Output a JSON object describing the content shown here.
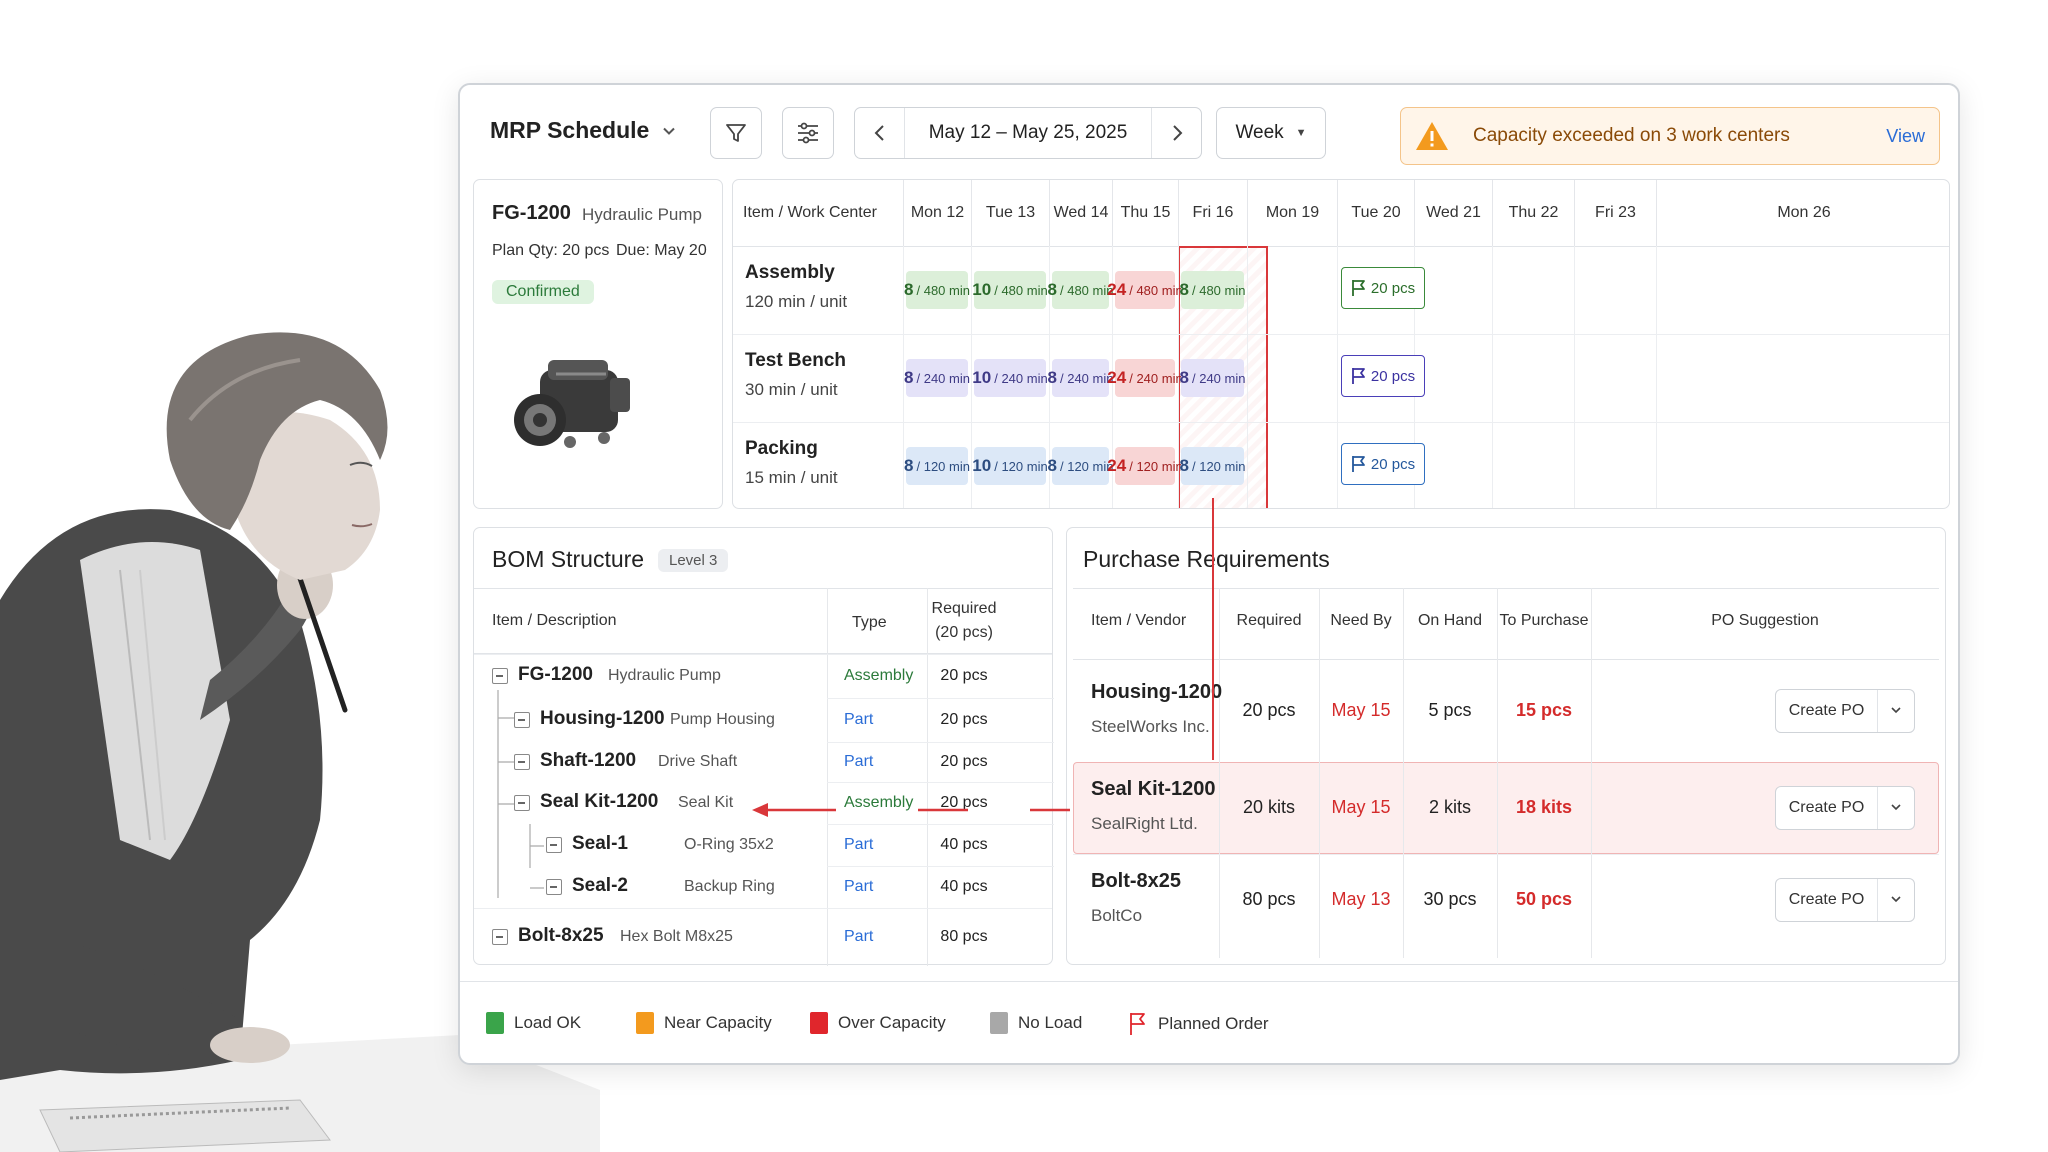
{
  "toolbar": {
    "title": "MRP Schedule",
    "date_range": "May 12 – May 25, 2025",
    "view": "Week",
    "alert_text": "Capacity exceeded on 3 work centers",
    "alert_link": "View"
  },
  "product": {
    "code": "FG-1200",
    "name": "Hydraulic Pump",
    "plan_qty": "Plan Qty: 20 pcs",
    "due": "Due: May 20",
    "status": "Confirmed"
  },
  "schedule": {
    "header_first": "Item / Work Center",
    "days": [
      "Mon 12",
      "Tue 13",
      "Wed 14",
      "Thu 15",
      "Fri 16",
      "Mon 19",
      "Tue 20",
      "Wed 21",
      "Thu 22",
      "Fri 23",
      "Mon 26"
    ],
    "rows": [
      {
        "name": "Assembly",
        "rate": "120 min / unit",
        "loads": [
          {
            "q": "8",
            "cap": "/ 480 min"
          },
          {
            "q": "10",
            "cap": "/ 480 min"
          },
          {
            "q": "8",
            "cap": "/ 480 min"
          },
          {
            "q": "24",
            "cap": "/ 480 min"
          },
          {
            "q": "8",
            "cap": "/ 480 min"
          }
        ],
        "planned": "20 pcs"
      },
      {
        "name": "Test Bench",
        "rate": "30 min / unit",
        "loads": [
          {
            "q": "8",
            "cap": "/ 240 min"
          },
          {
            "q": "10",
            "cap": "/ 240 min"
          },
          {
            "q": "8",
            "cap": "/ 240 min"
          },
          {
            "q": "24",
            "cap": "/ 240 min"
          },
          {
            "q": "8",
            "cap": "/ 240 min"
          }
        ],
        "planned": "20 pcs"
      },
      {
        "name": "Packing",
        "rate": "15 min / unit",
        "loads": [
          {
            "q": "8",
            "cap": "/ 120 min"
          },
          {
            "q": "10",
            "cap": "/ 120 min"
          },
          {
            "q": "8",
            "cap": "/ 120 min"
          },
          {
            "q": "24",
            "cap": "/ 120 min"
          },
          {
            "q": "8",
            "cap": "/ 120 min"
          }
        ],
        "planned": "20 pcs"
      }
    ]
  },
  "bom": {
    "title": "BOM Structure",
    "level": "Level 3",
    "headers": {
      "item": "Item / Description",
      "type": "Type",
      "required": "Required",
      "required_sub": "(20 pcs)"
    },
    "rows": [
      {
        "code": "FG-1200",
        "desc": "Hydraulic Pump",
        "type": "Assembly",
        "req": "20 pcs"
      },
      {
        "code": "Housing-1200",
        "desc": "Pump Housing",
        "type": "Part",
        "req": "20 pcs"
      },
      {
        "code": "Shaft-1200",
        "desc": "Drive Shaft",
        "type": "Part",
        "req": "20 pcs"
      },
      {
        "code": "Seal Kit-1200",
        "desc": "Seal Kit",
        "type": "Assembly",
        "req": "20 pcs"
      },
      {
        "code": "Seal-1",
        "desc": "O-Ring 35x2",
        "type": "Part",
        "req": "40 pcs"
      },
      {
        "code": "Seal-2",
        "desc": "Backup Ring",
        "type": "Part",
        "req": "40 pcs"
      },
      {
        "code": "Bolt-8x25",
        "desc": "Hex Bolt M8x25",
        "type": "Part",
        "req": "80 pcs"
      }
    ]
  },
  "purchase": {
    "title": "Purchase Requirements",
    "headers": [
      "Item / Vendor",
      "Required",
      "Need By",
      "On Hand",
      "To Purchase",
      "PO Suggestion"
    ],
    "rows": [
      {
        "item": "Housing-1200",
        "vendor": "SteelWorks Inc.",
        "required": "20 pcs",
        "need_by": "May 15",
        "on_hand": "5 pcs",
        "to_purchase": "15 pcs",
        "po": "Create PO"
      },
      {
        "item": "Seal Kit-1200",
        "vendor": "SealRight Ltd.",
        "required": "20 kits",
        "need_by": "May 15",
        "on_hand": "2 kits",
        "to_purchase": "18 kits",
        "po": "Create PO"
      },
      {
        "item": "Bolt-8x25",
        "vendor": "BoltCo",
        "required": "80 pcs",
        "need_by": "May 13",
        "on_hand": "30 pcs",
        "to_purchase": "50 pcs",
        "po": "Create PO"
      }
    ]
  },
  "legend": {
    "items": [
      {
        "label": "Load OK",
        "color": "#3aa44a"
      },
      {
        "label": "Near Capacity",
        "color": "#f39a1e"
      },
      {
        "label": "Over Capacity",
        "color": "#e0262c"
      },
      {
        "label": "No Load",
        "color": "#a8a8a8"
      },
      {
        "label": "Planned Order",
        "color": "#e0262c"
      }
    ]
  },
  "colors": {
    "accent": "#2a6cd6",
    "over_capacity": "#d9373a",
    "assembly": "#2b7a3a",
    "warning": "#f39a1e"
  },
  "icons": [
    "chevron-down-icon",
    "filter-icon",
    "sliders-icon",
    "chevron-left-icon",
    "chevron-right-icon",
    "caret-down-icon",
    "warning-icon",
    "flag-icon",
    "collapse-icon"
  ]
}
